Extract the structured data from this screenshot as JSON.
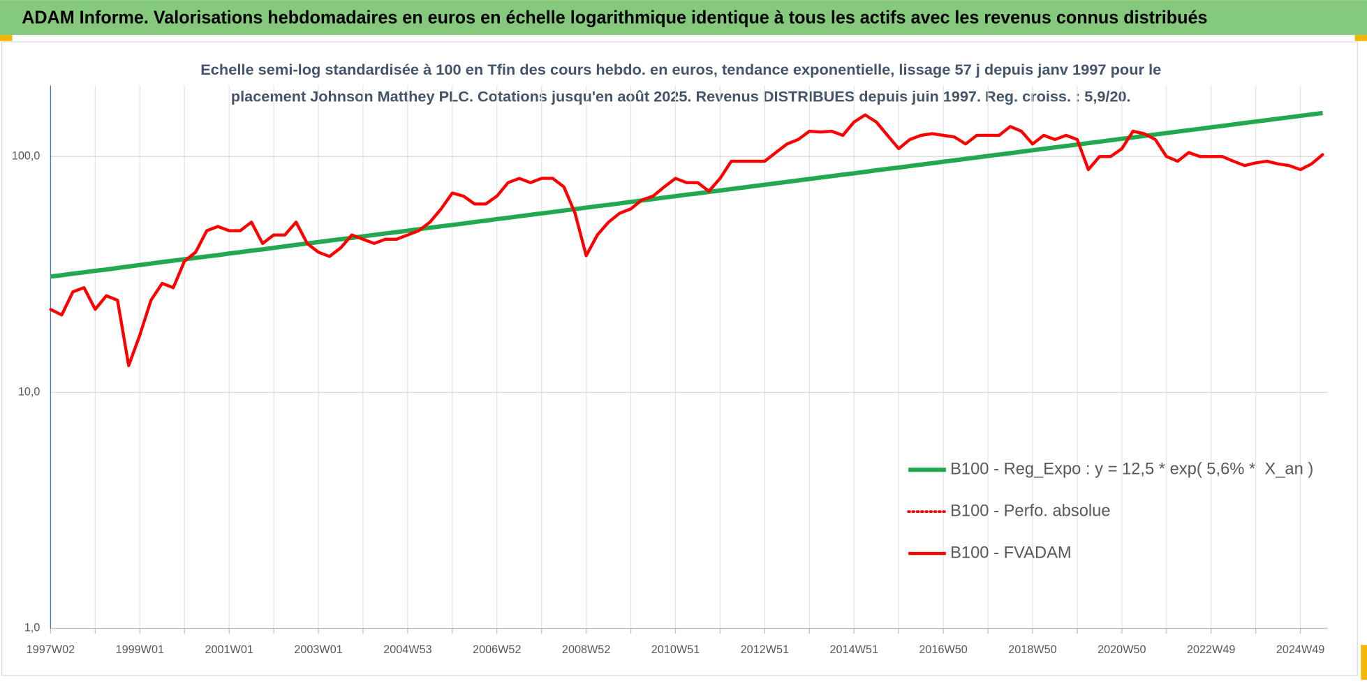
{
  "header": {
    "title": "ADAM Informe. Valorisations hebdomadaires en euros en échelle logarithmique identique à tous les actifs avec les revenus connus distribués"
  },
  "chart_data": {
    "type": "line",
    "subtitle": [
      "Echelle semi-log standardisée à 100 en Tfin des cours hebdo. en euros, tendance exponentielle, lissage 57 j depuis janv 1997 pour le",
      "placement Johnson Matthey PLC. Cotations jusqu'en août 2025. Revenus DISTRIBUES depuis juin 1997. Reg. croiss. : 5,9/20."
    ],
    "log_scale": true,
    "grid": true,
    "legend_position": "lower right",
    "ylim": [
      1,
      200
    ],
    "yticks": [
      {
        "value": 1,
        "label": "1,0"
      },
      {
        "value": 10,
        "label": "10,0"
      },
      {
        "value": 100,
        "label": "100,0"
      }
    ],
    "categories": [
      "1997W02",
      null,
      null,
      null,
      null,
      null,
      null,
      null,
      "1999W01",
      null,
      null,
      null,
      null,
      null,
      null,
      null,
      "2001W01",
      null,
      null,
      null,
      null,
      null,
      null,
      null,
      "2003W01",
      null,
      null,
      null,
      null,
      null,
      null,
      null,
      "2004W53",
      null,
      null,
      null,
      null,
      null,
      null,
      null,
      "2006W52",
      null,
      null,
      null,
      null,
      null,
      null,
      null,
      "2008W52",
      null,
      null,
      null,
      null,
      null,
      null,
      null,
      "2010W51",
      null,
      null,
      null,
      null,
      null,
      null,
      null,
      "2012W51",
      null,
      null,
      null,
      null,
      null,
      null,
      null,
      "2014W51",
      null,
      null,
      null,
      null,
      null,
      null,
      null,
      "2016W50",
      null,
      null,
      null,
      null,
      null,
      null,
      null,
      "2018W50",
      null,
      null,
      null,
      null,
      null,
      null,
      null,
      "2020W50",
      null,
      null,
      null,
      null,
      null,
      null,
      null,
      "2022W49",
      null,
      null,
      null,
      null,
      null,
      null,
      null,
      "2024W49",
      null,
      null
    ],
    "series": [
      {
        "name": "B100 - Reg_Expo : y = 12,5 * exp( 5,6% *  X_an )",
        "color": "#22a94f",
        "style": "solid",
        "width": 5,
        "values": [
          31,
          31.4,
          31.9,
          32.3,
          32.8,
          33.2,
          33.7,
          34.2,
          34.7,
          35.2,
          35.7,
          36.2,
          36.7,
          37.2,
          37.7,
          38.2,
          38.8,
          39.3,
          39.9,
          40.4,
          41.0,
          41.6,
          42.2,
          42.8,
          43.4,
          44.0,
          44.6,
          45.2,
          45.9,
          46.5,
          47.2,
          47.8,
          48.5,
          49.2,
          49.9,
          50.6,
          51.3,
          52.0,
          52.8,
          53.5,
          54.3,
          55.0,
          55.8,
          56.6,
          57.4,
          58.2,
          59.0,
          59.9,
          60.7,
          61.6,
          62.4,
          63.3,
          64.2,
          65.1,
          66.0,
          67.0,
          67.9,
          68.9,
          69.8,
          70.8,
          71.8,
          72.8,
          73.8,
          74.9,
          75.9,
          77.0,
          78.1,
          79.2,
          80.3,
          81.5,
          82.6,
          83.8,
          84.9,
          86.1,
          87.4,
          88.6,
          89.8,
          91.1,
          92.4,
          93.7,
          95.0,
          96.3,
          97.7,
          99.1,
          100.5,
          101.9,
          103.3,
          104.8,
          106.3,
          107.8,
          109.3,
          110.8,
          112.4,
          114.0,
          115.6,
          117.2,
          118.9,
          120.5,
          122.2,
          124.0,
          125.7,
          127.5,
          129.3,
          131.1,
          133.0,
          134.8,
          136.7,
          138.7,
          140.6,
          142.6,
          144.6,
          146.6,
          148.7,
          150.8,
          152.9
        ]
      },
      {
        "name": "B100 - Perfo. absolue",
        "color": "#ff0000",
        "style": "dotted",
        "width": 3,
        "values": [
          22.5,
          21.3,
          26.7,
          27.8,
          22.5,
          25.7,
          24.6,
          13,
          17.5,
          24.6,
          29,
          27.8,
          36,
          39.3,
          48.5,
          50.5,
          48.5,
          48.5,
          52.7,
          42.8,
          46.5,
          46.5,
          52.7,
          42.8,
          39.3,
          37.7,
          41,
          46.5,
          44.6,
          42.8,
          44.6,
          44.6,
          46.5,
          48.5,
          52.7,
          60,
          70,
          68,
          62.9,
          62.9,
          68,
          77.5,
          80.8,
          77.5,
          80.8,
          80.8,
          74.4,
          57.5,
          38,
          46.5,
          52.7,
          57.5,
          60,
          65.5,
          68,
          74.4,
          80.8,
          77.5,
          77.5,
          71.3,
          80.8,
          95.5,
          95.5,
          95.5,
          95.5,
          104,
          113,
          118,
          128,
          127,
          128,
          123,
          140,
          150,
          140,
          123,
          108,
          118,
          123,
          125,
          123,
          121,
          113,
          123,
          123,
          123,
          134,
          128,
          113,
          123,
          118,
          123,
          118,
          88,
          100,
          100,
          108,
          128,
          125,
          118,
          100,
          95.5,
          104,
          100,
          100,
          100,
          95.5,
          91.5,
          94,
          95.5,
          93,
          91.5,
          88,
          93,
          102
        ]
      },
      {
        "name": "B100 - FVADAM",
        "color": "#ff0000",
        "style": "solid",
        "width": 3.5,
        "values": [
          22.5,
          21.3,
          26.7,
          27.8,
          22.5,
          25.7,
          24.6,
          13,
          17.5,
          24.6,
          29,
          27.8,
          36,
          39.3,
          48.5,
          50.5,
          48.5,
          48.5,
          52.7,
          42.8,
          46.5,
          46.5,
          52.7,
          42.8,
          39.3,
          37.7,
          41,
          46.5,
          44.6,
          42.8,
          44.6,
          44.6,
          46.5,
          48.5,
          52.7,
          60,
          70,
          68,
          62.9,
          62.9,
          68,
          77.5,
          80.8,
          77.5,
          80.8,
          80.8,
          74.4,
          57.5,
          38,
          46.5,
          52.7,
          57.5,
          60,
          65.5,
          68,
          74.4,
          80.8,
          77.5,
          77.5,
          71.3,
          80.8,
          95.5,
          95.5,
          95.5,
          95.5,
          104,
          113,
          118,
          128,
          127,
          128,
          123,
          140,
          150,
          140,
          123,
          108,
          118,
          123,
          125,
          123,
          121,
          113,
          123,
          123,
          123,
          134,
          128,
          113,
          123,
          118,
          123,
          118,
          88,
          100,
          100,
          108,
          128,
          125,
          118,
          100,
          95.5,
          104,
          100,
          100,
          100,
          95.5,
          91.5,
          94,
          95.5,
          93,
          91.5,
          88,
          93,
          102
        ]
      }
    ]
  }
}
